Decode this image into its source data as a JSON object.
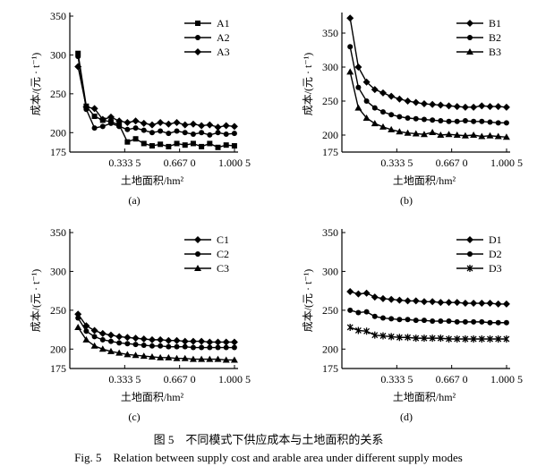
{
  "caption": {
    "cn": "图 5　不同模式下供应成本与土地面积的关系",
    "en": "Fig. 5　Relation between supply cost and arable area under different supply modes"
  },
  "chart_data": [
    {
      "type": "line",
      "panel_label": "(a)",
      "xlabel": "土地面积/hm²",
      "ylabel": "成本/(元 · t⁻¹)",
      "xlim": [
        0,
        1.0005
      ],
      "ylim": [
        175,
        350
      ],
      "xticks": [
        0.3335,
        0.667,
        1.0005
      ],
      "xtick_labels": [
        "0.333 5",
        "0.667 0",
        "1.000 5"
      ],
      "yticks": [
        175,
        200,
        250,
        300,
        350
      ],
      "legend_position": "top-right",
      "series": [
        {
          "name": "A1",
          "marker": "square",
          "x": [
            0.05,
            0.1,
            0.15,
            0.2,
            0.25,
            0.3,
            0.35,
            0.4,
            0.45,
            0.5,
            0.55,
            0.6,
            0.65,
            0.7,
            0.75,
            0.8,
            0.85,
            0.9,
            0.95,
            1.0
          ],
          "y": [
            302,
            234,
            221,
            216,
            214,
            210,
            188,
            192,
            186,
            183,
            185,
            182,
            186,
            184,
            186,
            182,
            186,
            181,
            184,
            183
          ]
        },
        {
          "name": "A2",
          "marker": "circle",
          "x": [
            0.05,
            0.1,
            0.15,
            0.2,
            0.25,
            0.3,
            0.35,
            0.4,
            0.45,
            0.5,
            0.55,
            0.6,
            0.65,
            0.7,
            0.75,
            0.8,
            0.85,
            0.9,
            0.95,
            1.0
          ],
          "y": [
            298,
            230,
            206,
            208,
            212,
            208,
            204,
            206,
            203,
            200,
            202,
            199,
            202,
            200,
            198,
            200,
            197,
            200,
            198,
            199
          ]
        },
        {
          "name": "A3",
          "marker": "diamond",
          "x": [
            0.05,
            0.1,
            0.15,
            0.2,
            0.25,
            0.3,
            0.35,
            0.4,
            0.45,
            0.5,
            0.55,
            0.6,
            0.65,
            0.7,
            0.75,
            0.8,
            0.85,
            0.9,
            0.95,
            1.0
          ],
          "y": [
            285,
            233,
            231,
            217,
            220,
            215,
            213,
            215,
            212,
            210,
            213,
            211,
            213,
            210,
            211,
            209,
            210,
            207,
            209,
            208
          ]
        }
      ]
    },
    {
      "type": "line",
      "panel_label": "(b)",
      "xlabel": "土地面积/hm²",
      "ylabel": "成本/(元 · t⁻¹)",
      "xlim": [
        0,
        1.0005
      ],
      "ylim": [
        175,
        375
      ],
      "xticks": [
        0.3335,
        0.667,
        1.0005
      ],
      "xtick_labels": [
        "0.333 5",
        "0.667 0",
        "1.000 5"
      ],
      "yticks": [
        175,
        200,
        250,
        300,
        350
      ],
      "legend_position": "top-right",
      "series": [
        {
          "name": "B1",
          "marker": "diamond",
          "x": [
            0.05,
            0.1,
            0.15,
            0.2,
            0.25,
            0.3,
            0.35,
            0.4,
            0.45,
            0.5,
            0.55,
            0.6,
            0.65,
            0.7,
            0.75,
            0.8,
            0.85,
            0.9,
            0.95,
            1.0
          ],
          "y": [
            372,
            300,
            278,
            267,
            262,
            257,
            253,
            250,
            248,
            246,
            245,
            244,
            243,
            242,
            241,
            241,
            243,
            242,
            242,
            241
          ]
        },
        {
          "name": "B2",
          "marker": "circle",
          "x": [
            0.05,
            0.1,
            0.15,
            0.2,
            0.25,
            0.3,
            0.35,
            0.4,
            0.45,
            0.5,
            0.55,
            0.6,
            0.65,
            0.7,
            0.75,
            0.8,
            0.85,
            0.9,
            0.95,
            1.0
          ],
          "y": [
            330,
            270,
            250,
            240,
            234,
            230,
            227,
            225,
            224,
            223,
            222,
            221,
            220,
            220,
            221,
            220,
            220,
            219,
            218,
            218
          ]
        },
        {
          "name": "B3",
          "marker": "triangle",
          "x": [
            0.05,
            0.1,
            0.15,
            0.2,
            0.25,
            0.3,
            0.35,
            0.4,
            0.45,
            0.5,
            0.55,
            0.6,
            0.65,
            0.7,
            0.75,
            0.8,
            0.85,
            0.9,
            0.95,
            1.0
          ],
          "y": [
            293,
            240,
            225,
            217,
            212,
            208,
            205,
            203,
            202,
            201,
            204,
            200,
            201,
            200,
            199,
            200,
            198,
            199,
            198,
            197
          ]
        }
      ]
    },
    {
      "type": "line",
      "panel_label": "(c)",
      "xlabel": "土地面积/hm²",
      "ylabel": "成本/(元 · t⁻¹)",
      "xlim": [
        0,
        1.0005
      ],
      "ylim": [
        175,
        350
      ],
      "xticks": [
        0.3335,
        0.667,
        1.0005
      ],
      "xtick_labels": [
        "0.333 5",
        "0.667 0",
        "1.000 5"
      ],
      "yticks": [
        175,
        200,
        250,
        300,
        350
      ],
      "legend_position": "top-right",
      "series": [
        {
          "name": "C1",
          "marker": "diamond",
          "x": [
            0.05,
            0.1,
            0.15,
            0.2,
            0.25,
            0.3,
            0.35,
            0.4,
            0.45,
            0.5,
            0.55,
            0.6,
            0.65,
            0.7,
            0.75,
            0.8,
            0.85,
            0.9,
            0.95,
            1.0
          ],
          "y": [
            245,
            230,
            224,
            220,
            218,
            216,
            215,
            214,
            213,
            212,
            212,
            211,
            211,
            210,
            210,
            210,
            209,
            209,
            209,
            209
          ]
        },
        {
          "name": "C2",
          "marker": "circle",
          "x": [
            0.05,
            0.1,
            0.15,
            0.2,
            0.25,
            0.3,
            0.35,
            0.4,
            0.45,
            0.5,
            0.55,
            0.6,
            0.65,
            0.7,
            0.75,
            0.8,
            0.85,
            0.9,
            0.95,
            1.0
          ],
          "y": [
            240,
            223,
            216,
            212,
            210,
            208,
            207,
            206,
            205,
            204,
            204,
            203,
            203,
            203,
            202,
            202,
            202,
            202,
            202,
            202
          ]
        },
        {
          "name": "C3",
          "marker": "triangle",
          "x": [
            0.05,
            0.1,
            0.15,
            0.2,
            0.25,
            0.3,
            0.35,
            0.4,
            0.45,
            0.5,
            0.55,
            0.6,
            0.65,
            0.7,
            0.75,
            0.8,
            0.85,
            0.9,
            0.95,
            1.0
          ],
          "y": [
            228,
            212,
            204,
            200,
            197,
            195,
            193,
            192,
            191,
            190,
            189,
            189,
            188,
            188,
            187,
            187,
            187,
            187,
            186,
            186
          ]
        }
      ]
    },
    {
      "type": "line",
      "panel_label": "(d)",
      "xlabel": "土地面积/hm²",
      "ylabel": "成本/(元 · t⁻¹)",
      "xlim": [
        0,
        1.0005
      ],
      "ylim": [
        175,
        350
      ],
      "xticks": [
        0.3335,
        0.667,
        1.0005
      ],
      "xtick_labels": [
        "0.333 5",
        "0.667 0",
        "1.000 5"
      ],
      "yticks": [
        175,
        200,
        250,
        300,
        350
      ],
      "legend_position": "top-right",
      "series": [
        {
          "name": "D1",
          "marker": "diamond",
          "x": [
            0.05,
            0.1,
            0.15,
            0.2,
            0.25,
            0.3,
            0.35,
            0.4,
            0.45,
            0.5,
            0.55,
            0.6,
            0.65,
            0.7,
            0.75,
            0.8,
            0.85,
            0.9,
            0.95,
            1.0
          ],
          "y": [
            274,
            271,
            272,
            267,
            265,
            264,
            263,
            262,
            262,
            261,
            261,
            260,
            260,
            260,
            259,
            259,
            259,
            259,
            258,
            258
          ]
        },
        {
          "name": "D2",
          "marker": "circle",
          "x": [
            0.05,
            0.1,
            0.15,
            0.2,
            0.25,
            0.3,
            0.35,
            0.4,
            0.45,
            0.5,
            0.55,
            0.6,
            0.65,
            0.7,
            0.75,
            0.8,
            0.85,
            0.9,
            0.95,
            1.0
          ],
          "y": [
            250,
            247,
            248,
            242,
            240,
            239,
            238,
            238,
            237,
            237,
            236,
            236,
            236,
            235,
            235,
            235,
            235,
            234,
            234,
            234
          ]
        },
        {
          "name": "D3",
          "marker": "asterisk",
          "x": [
            0.05,
            0.1,
            0.15,
            0.2,
            0.25,
            0.3,
            0.35,
            0.4,
            0.45,
            0.5,
            0.55,
            0.6,
            0.65,
            0.7,
            0.75,
            0.8,
            0.85,
            0.9,
            0.95,
            1.0
          ],
          "y": [
            228,
            224,
            223,
            218,
            217,
            216,
            215,
            215,
            214,
            214,
            214,
            214,
            213,
            213,
            213,
            213,
            213,
            213,
            213,
            213
          ]
        }
      ]
    }
  ]
}
